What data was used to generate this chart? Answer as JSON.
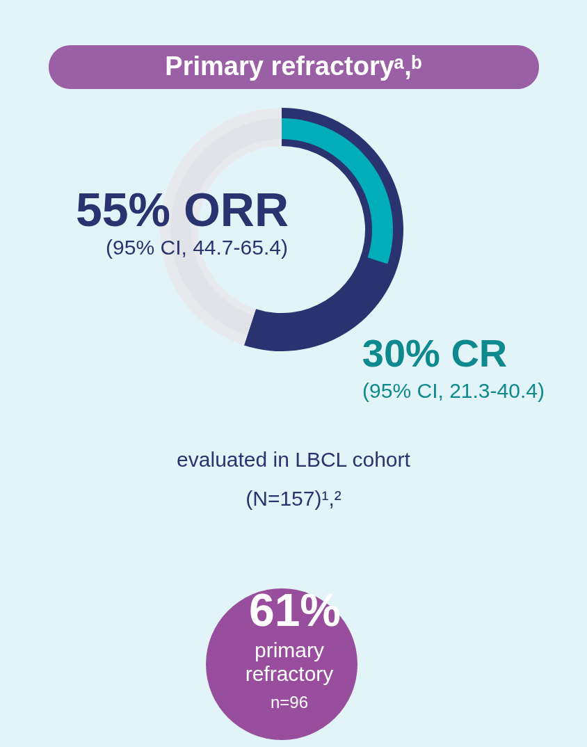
{
  "chart_data": {
    "type": "donut",
    "title": "Primary refractoryᵃ,ᵇ",
    "series": [
      {
        "values": [
          55,
          45
        ],
        "colors": [
          "#2b3270",
          "#e8e9ec"
        ]
      },
      {
        "values": [
          30,
          70
        ],
        "colors": [
          "#00adb9",
          null
        ]
      }
    ],
    "annotations": [
      "55% ORR",
      "(95% CI, 44.7-65.4)",
      "30% CR",
      "(95% CI, 21.3-40.4)",
      "evaluated in LBCL cohort",
      "(N=157)¹,²",
      "61%",
      "primary",
      "refractory",
      "n=96"
    ]
  }
}
